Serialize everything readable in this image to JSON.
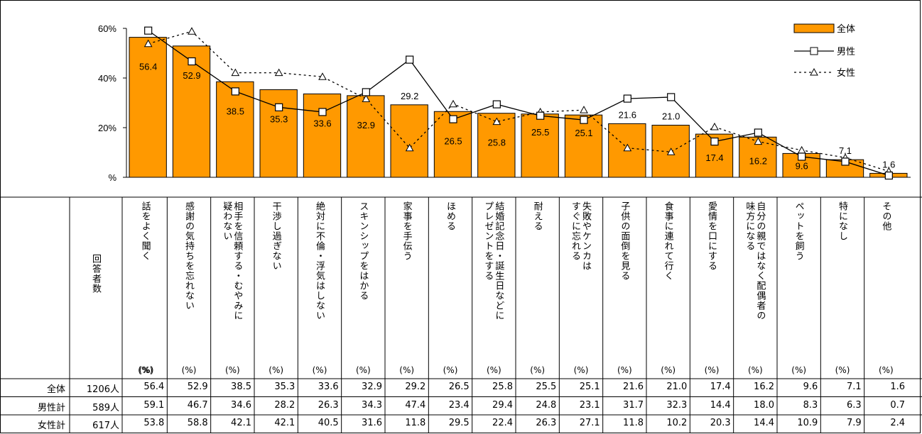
{
  "chart_data": {
    "type": "bar",
    "y_ticks": [
      "60%",
      "40%",
      "20%",
      "%"
    ],
    "ylim": [
      0,
      60
    ],
    "categories": [
      "話をよく聞く",
      "感謝の気持ちを忘れない",
      "相手を信頼する・むやみに疑わない",
      "干渉し過ぎない",
      "絶対に不倫・浮気はしない",
      "スキンシップをはかる",
      "家事を手伝う",
      "ほめる",
      "結婚記念日・誕生日などにプレゼントをする",
      "耐える",
      "失敗やケンカはすぐに忘れる",
      "子供の面倒を見る",
      "食事に連れて行く",
      "愛情を口にする",
      "自分の親ではなく配偶者の味方になる",
      "ペットを飼う",
      "特になし",
      "その他"
    ],
    "category_display": [
      "話をよく聞く",
      "感謝の気持ちを忘れない",
      "相手を信頼する・むやみに\n疑わない",
      "干渉し過ぎない",
      "絶対に不倫・浮気はしない",
      "スキンシップをはかる",
      "家事を手伝う",
      "ほめる",
      "結婚記念日・誕生日などに\nプレゼントをする",
      "耐える",
      "失敗やケンカは\nすぐに忘れる",
      "子供の面倒を見る",
      "食事に連れて行く",
      "愛情を口にする",
      "自分の親ではなく配偶者の\n味方になる",
      "ペットを飼う",
      "特になし",
      "その他"
    ],
    "series": [
      {
        "name": "全体",
        "type": "bar",
        "color": "#FF9900",
        "values": [
          56.4,
          52.9,
          38.5,
          35.3,
          33.6,
          32.9,
          29.2,
          26.5,
          25.8,
          25.5,
          25.1,
          21.6,
          21.0,
          17.4,
          16.2,
          9.6,
          7.1,
          1.6
        ]
      },
      {
        "name": "男性",
        "type": "line",
        "marker": "square",
        "values": [
          59.1,
          46.7,
          34.6,
          28.2,
          26.3,
          34.3,
          47.4,
          23.4,
          29.4,
          24.8,
          23.1,
          31.7,
          32.3,
          14.4,
          18.0,
          8.3,
          6.3,
          0.7
        ]
      },
      {
        "name": "女性",
        "type": "line",
        "marker": "triangle",
        "dashed": true,
        "values": [
          53.8,
          58.8,
          42.1,
          42.1,
          40.5,
          31.6,
          11.8,
          29.5,
          22.4,
          26.3,
          27.1,
          11.8,
          10.2,
          20.3,
          14.4,
          10.9,
          7.9,
          2.4
        ]
      }
    ],
    "legend_position": "top-right"
  },
  "table": {
    "respondents_header": "回答者数",
    "pct_unit": "(%)",
    "rows": [
      {
        "label": "全体",
        "respondents": "1206人",
        "values": [
          "56.4",
          "52.9",
          "38.5",
          "35.3",
          "33.6",
          "32.9",
          "29.2",
          "26.5",
          "25.8",
          "25.5",
          "25.1",
          "21.6",
          "21.0",
          "17.4",
          "16.2",
          "9.6",
          "7.1",
          "1.6"
        ]
      },
      {
        "label": "男性計",
        "respondents": "589人",
        "values": [
          "59.1",
          "46.7",
          "34.6",
          "28.2",
          "26.3",
          "34.3",
          "47.4",
          "23.4",
          "29.4",
          "24.8",
          "23.1",
          "31.7",
          "32.3",
          "14.4",
          "18.0",
          "8.3",
          "6.3",
          "0.7"
        ]
      },
      {
        "label": "女性計",
        "respondents": "617人",
        "values": [
          "53.8",
          "58.8",
          "42.1",
          "42.1",
          "40.5",
          "31.6",
          "11.8",
          "29.5",
          "22.4",
          "26.3",
          "27.1",
          "11.8",
          "10.2",
          "20.3",
          "14.4",
          "10.9",
          "7.9",
          "2.4"
        ]
      }
    ]
  }
}
